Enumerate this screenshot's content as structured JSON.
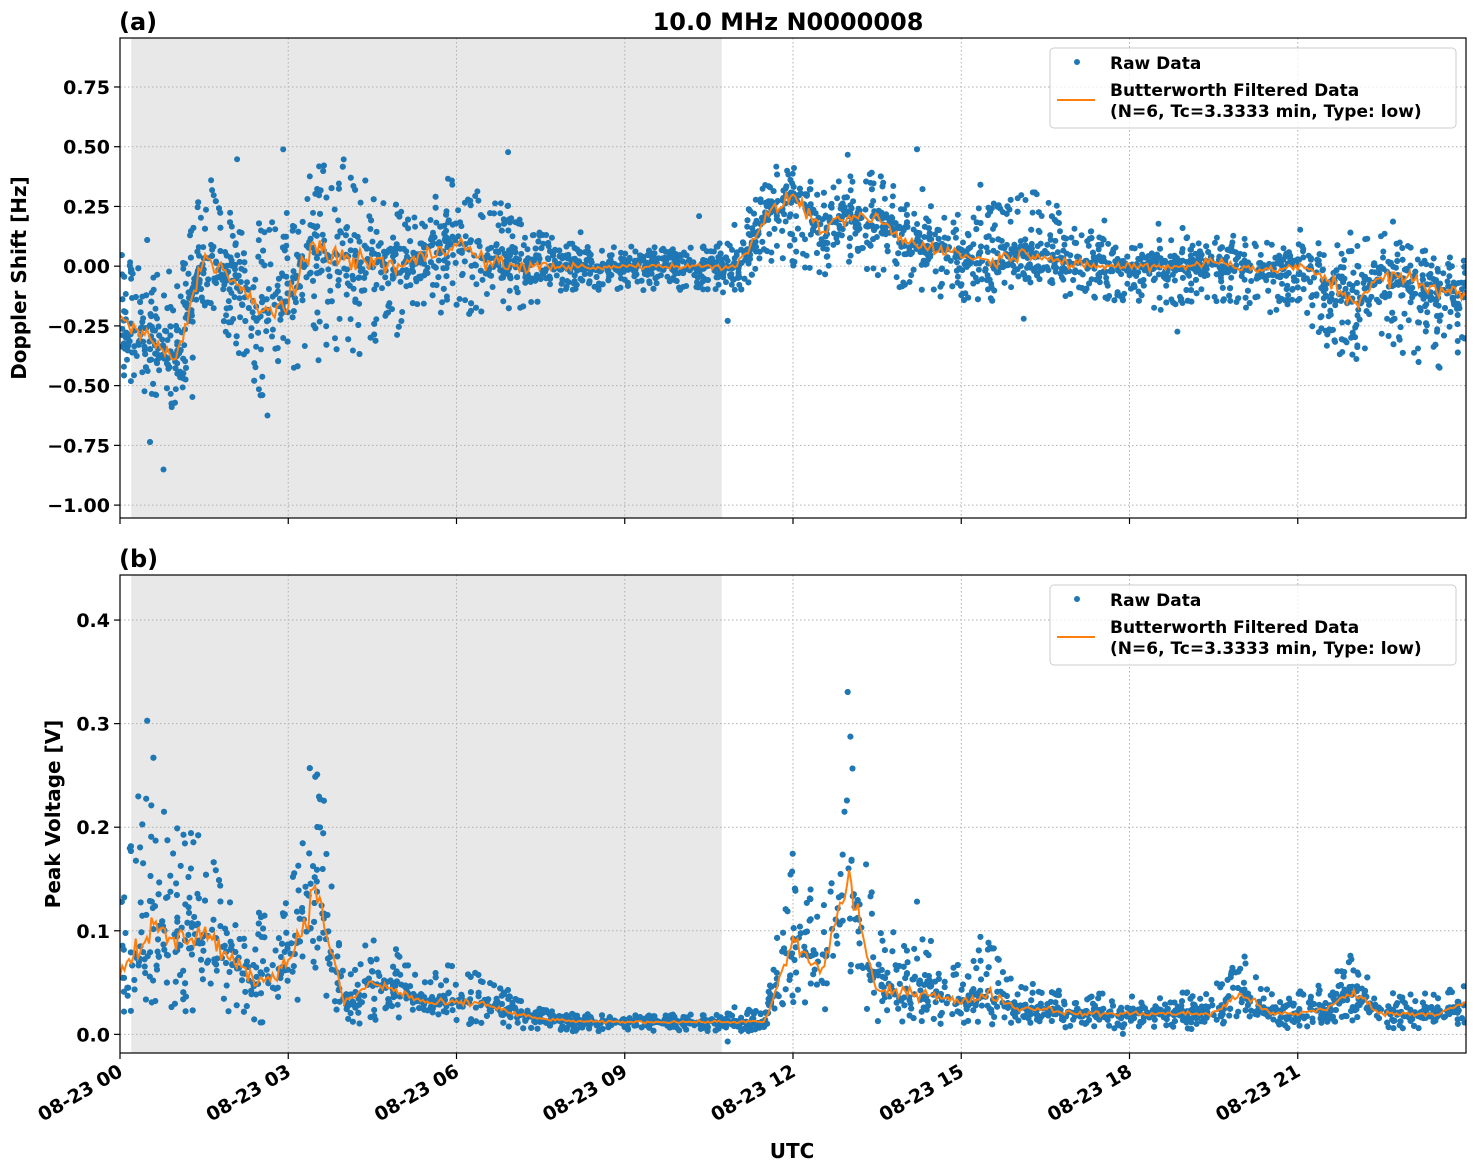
{
  "figure_title": "10.0 MHz N0000008",
  "xlabel": "UTC",
  "x_tick_labels": [
    "08-23 00",
    "08-23 03",
    "08-23 06",
    "08-23 09",
    "08-23 12",
    "08-23 15",
    "08-23 18",
    "08-23 21"
  ],
  "x_tick_hours": [
    0,
    3,
    6,
    9,
    12,
    15,
    18,
    21
  ],
  "colors": {
    "raw": "#1f77b4",
    "filtered": "#ff7f0e",
    "night_shade": "#e8e8e8"
  },
  "chart_data": [
    {
      "type": "scatter",
      "panel_label": "(a)",
      "ylabel": "Doppler Shift [Hz]",
      "xlim_hours": [
        0,
        24
      ],
      "ylim": [
        -1.054,
        0.955
      ],
      "y_ticks": [
        0.75,
        0.5,
        0.25,
        0.0,
        -0.25,
        -0.5,
        -0.75,
        -1.0
      ],
      "y_tick_labels": [
        "0.75",
        "0.50",
        "0.25",
        "0.00",
        "−0.25",
        "−0.50",
        "−0.75",
        "−1.00"
      ],
      "grid": true,
      "legend_placement": "top-right",
      "shaded_interval_hours": [
        0.2,
        10.73
      ],
      "legend": [
        "Raw Data",
        "Butterworth Filtered Data",
        "(N=6, Tc=3.3333 min, Type: low)"
      ],
      "x_hours": [
        0,
        0.5,
        1,
        1.5,
        2,
        2.5,
        3,
        3.5,
        4,
        4.5,
        5,
        5.5,
        6,
        6.5,
        7,
        7.5,
        8,
        8.5,
        9,
        9.5,
        10,
        10.5,
        11,
        11.5,
        12,
        12.5,
        13,
        13.5,
        14,
        14.5,
        15,
        15.5,
        16,
        16.5,
        17,
        17.5,
        18,
        18.5,
        19,
        19.5,
        20,
        20.5,
        21,
        21.5,
        22,
        22.5,
        23,
        23.5,
        24
      ],
      "filtered": [
        -0.22,
        -0.3,
        -0.4,
        0.05,
        -0.05,
        -0.2,
        -0.15,
        0.1,
        0.02,
        0.02,
        0.0,
        0.05,
        0.1,
        0.02,
        0.0,
        0.0,
        0.0,
        -0.01,
        0.0,
        0.0,
        0.0,
        0.0,
        0.0,
        0.2,
        0.3,
        0.15,
        0.2,
        0.2,
        0.1,
        0.08,
        0.05,
        0.02,
        0.05,
        0.05,
        0.0,
        0.0,
        0.0,
        0.0,
        0.0,
        0.02,
        0.0,
        -0.02,
        0.0,
        -0.05,
        -0.15,
        -0.05,
        -0.05,
        -0.1,
        -0.12
      ],
      "raw_lower": [
        -0.45,
        -0.55,
        -0.6,
        -0.25,
        -0.35,
        -0.55,
        -0.5,
        -0.3,
        -0.4,
        -0.35,
        -0.3,
        -0.25,
        -0.2,
        -0.2,
        -0.2,
        -0.15,
        -0.1,
        -0.1,
        -0.1,
        -0.1,
        -0.1,
        -0.1,
        -0.12,
        0.0,
        0.0,
        -0.05,
        0.0,
        -0.05,
        -0.1,
        -0.12,
        -0.15,
        -0.15,
        -0.1,
        -0.1,
        -0.15,
        -0.15,
        -0.15,
        -0.2,
        -0.15,
        -0.15,
        -0.2,
        -0.2,
        -0.15,
        -0.35,
        -0.4,
        -0.3,
        -0.4,
        -0.45,
        -0.35
      ],
      "raw_upper": [
        0.05,
        0.0,
        -0.1,
        0.4,
        0.25,
        0.2,
        0.25,
        0.45,
        0.45,
        0.35,
        0.25,
        0.3,
        0.4,
        0.3,
        0.25,
        0.15,
        0.1,
        0.08,
        0.08,
        0.08,
        0.08,
        0.1,
        0.15,
        0.4,
        0.45,
        0.35,
        0.38,
        0.4,
        0.3,
        0.25,
        0.25,
        0.25,
        0.35,
        0.3,
        0.2,
        0.12,
        0.1,
        0.12,
        0.12,
        0.15,
        0.12,
        0.1,
        0.1,
        0.1,
        0.1,
        0.25,
        0.1,
        0.05,
        0.05
      ]
    },
    {
      "type": "scatter",
      "panel_label": "(b)",
      "ylabel": "Peak Voltage [V]",
      "xlim_hours": [
        0,
        24
      ],
      "ylim": [
        -0.018,
        0.4435
      ],
      "y_ticks": [
        0.0,
        0.1,
        0.2,
        0.3,
        0.4
      ],
      "y_tick_labels": [
        "0.0",
        "0.1",
        "0.2",
        "0.3",
        "0.4"
      ],
      "grid": true,
      "legend_placement": "top-right",
      "shaded_interval_hours": [
        0.2,
        10.73
      ],
      "legend": [
        "Raw Data",
        "Butterworth Filtered Data",
        "(N=6, Tc=3.3333 min, Type: low)"
      ],
      "x_hours": [
        0,
        0.5,
        1,
        1.5,
        2,
        2.5,
        3,
        3.5,
        4,
        4.5,
        5,
        5.5,
        6,
        6.5,
        7,
        7.5,
        8,
        8.5,
        9,
        9.5,
        10,
        10.5,
        11,
        11.5,
        12,
        12.5,
        13,
        13.5,
        14,
        14.5,
        15,
        15.5,
        16,
        16.5,
        17,
        17.5,
        18,
        18.5,
        19,
        19.5,
        20,
        20.5,
        21,
        21.5,
        22,
        22.5,
        23,
        23.5,
        24
      ],
      "filtered": [
        0.06,
        0.1,
        0.09,
        0.1,
        0.07,
        0.05,
        0.07,
        0.14,
        0.03,
        0.05,
        0.04,
        0.03,
        0.03,
        0.03,
        0.02,
        0.015,
        0.013,
        0.012,
        0.012,
        0.012,
        0.012,
        0.012,
        0.012,
        0.012,
        0.09,
        0.06,
        0.15,
        0.04,
        0.04,
        0.04,
        0.03,
        0.04,
        0.025,
        0.025,
        0.02,
        0.02,
        0.02,
        0.02,
        0.02,
        0.02,
        0.04,
        0.02,
        0.02,
        0.025,
        0.04,
        0.02,
        0.02,
        0.02,
        0.03
      ],
      "raw_lower": [
        0.02,
        0.02,
        0.02,
        0.02,
        0.01,
        0.01,
        0.02,
        0.05,
        0.01,
        0.01,
        0.01,
        0.01,
        0.01,
        0.01,
        0.005,
        0.005,
        0.003,
        0.003,
        0.003,
        0.003,
        0.003,
        0.003,
        0.003,
        0.003,
        0.03,
        0.02,
        0.03,
        0.01,
        0.01,
        0.01,
        0.01,
        0.01,
        0.008,
        0.008,
        0.005,
        0.005,
        0.005,
        0.005,
        0.005,
        0.005,
        0.01,
        0.005,
        0.005,
        0.005,
        0.01,
        0.005,
        0.005,
        0.005,
        0.01
      ],
      "raw_upper": [
        0.13,
        0.3,
        0.2,
        0.2,
        0.14,
        0.12,
        0.15,
        0.3,
        0.05,
        0.1,
        0.08,
        0.06,
        0.07,
        0.06,
        0.04,
        0.025,
        0.02,
        0.02,
        0.02,
        0.02,
        0.02,
        0.02,
        0.025,
        0.025,
        0.2,
        0.12,
        0.3,
        0.1,
        0.1,
        0.09,
        0.07,
        0.09,
        0.05,
        0.05,
        0.04,
        0.04,
        0.04,
        0.04,
        0.04,
        0.05,
        0.08,
        0.04,
        0.04,
        0.05,
        0.08,
        0.04,
        0.04,
        0.04,
        0.05
      ]
    }
  ]
}
